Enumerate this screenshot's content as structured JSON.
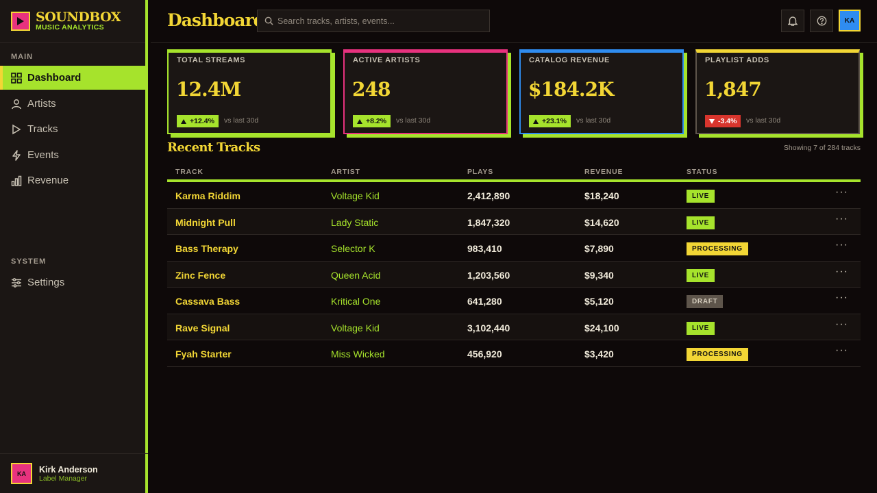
{
  "brand": {
    "title": "SOUNDBOX",
    "subtitle": "MUSIC ANALYTICS"
  },
  "sidebar": {
    "sections": [
      {
        "label": "MAIN",
        "items": [
          {
            "label": "Dashboard",
            "icon": "grid-icon",
            "active": true
          },
          {
            "label": "Artists",
            "icon": "user-icon"
          },
          {
            "label": "Tracks",
            "icon": "play-icon"
          },
          {
            "label": "Events",
            "icon": "bolt-icon"
          },
          {
            "label": "Revenue",
            "icon": "bar-chart-icon"
          }
        ]
      },
      {
        "label": "SYSTEM",
        "items": [
          {
            "label": "Settings",
            "icon": "sliders-icon"
          }
        ]
      }
    ],
    "user": {
      "initials": "KA",
      "name": "Kirk Anderson",
      "role": "Label Manager"
    }
  },
  "header": {
    "title": "Dashboard",
    "search_placeholder": "Search tracks, artists, events...",
    "avatar_initials": "KA"
  },
  "stats": [
    {
      "label": "TOTAL STREAMS",
      "value": "12.4M",
      "delta": "+12.4%",
      "direction": "up",
      "vs": "vs last 30d",
      "accent": "#a6e32c"
    },
    {
      "label": "ACTIVE ARTISTS",
      "value": "248",
      "delta": "+8.2%",
      "direction": "up",
      "vs": "vs last 30d",
      "accent": "#e8327e"
    },
    {
      "label": "CATALOG REVENUE",
      "value": "$184.2K",
      "delta": "+23.1%",
      "direction": "up",
      "vs": "vs last 30d",
      "accent": "#2f8cf0"
    },
    {
      "label": "PLAYLIST ADDS",
      "value": "1,847",
      "delta": "-3.4%",
      "direction": "down",
      "vs": "vs last 30d",
      "accent": "#f2d635"
    }
  ],
  "recent_tracks": {
    "title": "Recent Tracks",
    "meta": "Showing 7 of 284 tracks",
    "columns": [
      "TRACK",
      "ARTIST",
      "PLAYS",
      "REVENUE",
      "STATUS"
    ],
    "rows": [
      {
        "track": "Karma Riddim",
        "artist": "Voltage Kid",
        "plays": "2,412,890",
        "revenue": "$18,240",
        "status": "LIVE"
      },
      {
        "track": "Midnight Pull",
        "artist": "Lady Static",
        "plays": "1,847,320",
        "revenue": "$14,620",
        "status": "LIVE"
      },
      {
        "track": "Bass Therapy",
        "artist": "Selector K",
        "plays": "983,410",
        "revenue": "$7,890",
        "status": "PROCESSING"
      },
      {
        "track": "Zinc Fence",
        "artist": "Queen Acid",
        "plays": "1,203,560",
        "revenue": "$9,340",
        "status": "LIVE"
      },
      {
        "track": "Cassava Bass",
        "artist": "Kritical One",
        "plays": "641,280",
        "revenue": "$5,120",
        "status": "DRAFT"
      },
      {
        "track": "Rave Signal",
        "artist": "Voltage Kid",
        "plays": "3,102,440",
        "revenue": "$24,100",
        "status": "LIVE"
      },
      {
        "track": "Fyah Starter",
        "artist": "Miss Wicked",
        "plays": "456,920",
        "revenue": "$3,420",
        "status": "PROCESSING"
      }
    ]
  },
  "colors": {
    "lime": "#a6e32c",
    "yellow": "#f2d635",
    "pink": "#e8327e",
    "blue": "#2f8cf0",
    "red": "#d8352d"
  }
}
